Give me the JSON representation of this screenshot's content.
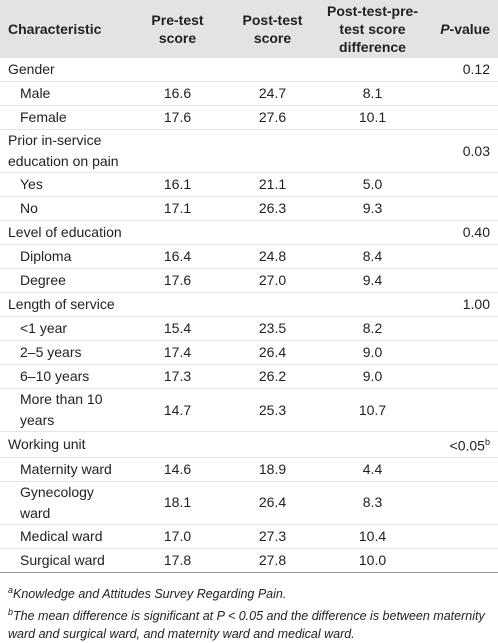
{
  "table": {
    "header": [
      "Characteristic",
      "Pre-test score",
      "Post-test score",
      "Post-test-pre-test score difference",
      {
        "italic": "P",
        "text": "-value"
      }
    ],
    "rows": [
      {
        "label": "Gender",
        "p": "0.12"
      },
      {
        "label": "Male",
        "values": [
          "16.6",
          "24.7",
          "8.1"
        ]
      },
      {
        "label": "Female",
        "values": [
          "17.6",
          "27.6",
          "10.1"
        ]
      },
      {
        "label": "Prior in-service education on pain",
        "p": "0.03"
      },
      {
        "label": "Yes",
        "values": [
          "16.1",
          "21.1",
          "5.0"
        ]
      },
      {
        "label": "No",
        "values": [
          "17.1",
          "26.3",
          "9.3"
        ]
      },
      {
        "label": "Level of education",
        "p": "0.40"
      },
      {
        "label": "Diploma",
        "values": [
          "16.4",
          "24.8",
          "8.4"
        ]
      },
      {
        "label": "Degree",
        "values": [
          "17.6",
          "27.0",
          "9.4"
        ]
      },
      {
        "label": "Length of service",
        "p": "1.00"
      },
      {
        "label": "<1 year",
        "values": [
          "15.4",
          "23.5",
          "8.2"
        ]
      },
      {
        "label": "2–5 years",
        "values": [
          "17.4",
          "26.4",
          "9.0"
        ]
      },
      {
        "label": "6–10 years",
        "values": [
          "17.3",
          "26.2",
          "9.0"
        ]
      },
      {
        "label": "More than 10 years",
        "values": [
          "14.7",
          "25.3",
          "10.7"
        ]
      },
      {
        "label": "Working unit",
        "p": "<0.05",
        "p_note": "b"
      },
      {
        "label": "Maternity ward",
        "values": [
          "14.6",
          "18.9",
          "4.4"
        ]
      },
      {
        "label": "Gynecology ward",
        "values": [
          "18.1",
          "26.4",
          "8.3"
        ]
      },
      {
        "label": "Medical ward",
        "values": [
          "17.0",
          "27.3",
          "10.4"
        ]
      },
      {
        "label": "Surgical ward",
        "values": [
          "17.8",
          "27.8",
          "10.0"
        ]
      }
    ]
  },
  "footnotes": [
    {
      "mark": "a",
      "text": "Knowledge and Attitudes Survey Regarding Pain."
    },
    {
      "mark": "b",
      "text": "The mean difference is significant at P < 0.05 and the difference is between maternity ward and surgical ward, and maternity ward and medical ward."
    }
  ]
}
